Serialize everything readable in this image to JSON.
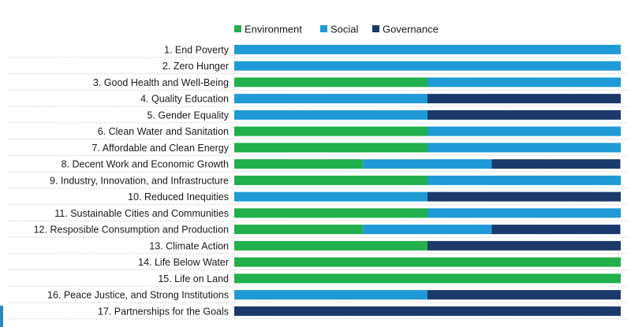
{
  "chart_data": {
    "type": "bar",
    "stacked": true,
    "orientation": "horizontal",
    "title": "",
    "xlabel": "",
    "ylabel": "",
    "xlim": [
      0,
      1
    ],
    "grid": false,
    "legend_position": "top-center",
    "categories": [
      "1.   End Poverty",
      "2.   Zero Hunger",
      "3.   Good Health and Well-Being",
      "4.   Quality Education",
      "5.   Gender Equality",
      "6.   Clean Water and Sanitation",
      "7.   Affordable and Clean Energy",
      "8.   Decent Work and Economic Growth",
      "9.   Industry, Innovation, and Infrastructure",
      "10.  Reduced Inequities",
      "11.  Sustainable Cities and Communities",
      "12.  Resposible Consumption and Production",
      "13.  Climate Action",
      "14.  Life Below Water",
      "15.  Life on Land",
      "16.  Peace Justice, and Strong Institutions",
      "17.  Partnerships for the Goals"
    ],
    "series": [
      {
        "name": "Environment",
        "color": "#21b04b",
        "values": [
          0,
          0,
          0.5,
          0,
          0,
          0.5,
          0.5,
          0.333,
          0.5,
          0,
          0.5,
          0.333,
          0.5,
          1,
          1,
          0,
          0
        ]
      },
      {
        "name": "Social",
        "color": "#1f9ad6",
        "values": [
          1,
          1,
          0.5,
          0.5,
          0.5,
          0.5,
          0.5,
          0.333,
          0.5,
          0.5,
          0.5,
          0.333,
          0,
          0,
          0,
          0.5,
          0
        ]
      },
      {
        "name": "Governance",
        "color": "#1b3a6b",
        "values": [
          0,
          0,
          0,
          0.5,
          0.5,
          0,
          0,
          0.333,
          0,
          0.5,
          0,
          0.333,
          0.5,
          0,
          0,
          0.5,
          1
        ]
      }
    ]
  }
}
